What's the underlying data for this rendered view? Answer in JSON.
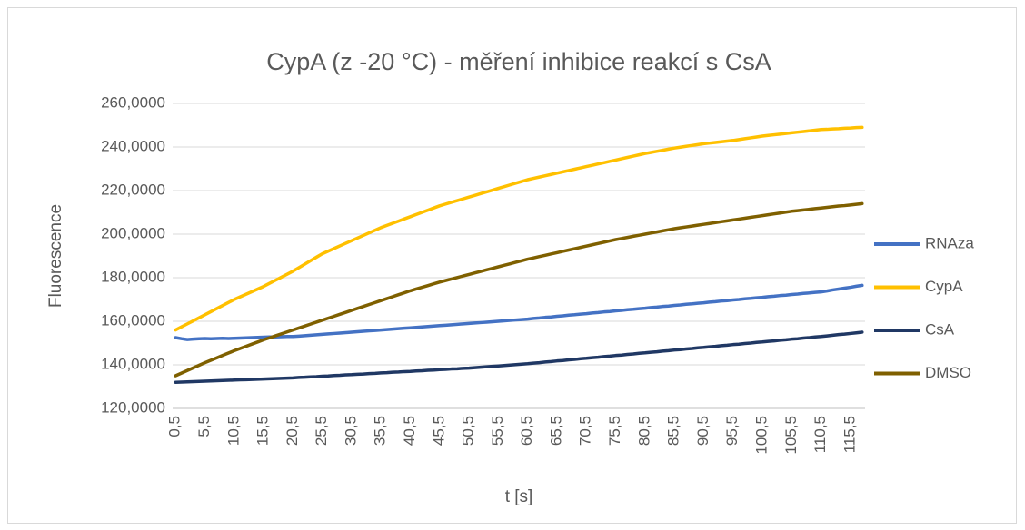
{
  "chart_data": {
    "type": "line",
    "title": "CypA (z -20 °C) - měření inhibice reakcí s CsA",
    "x_label": "t [s]",
    "y_label": "Fluorescence",
    "categories": [
      "0,5",
      null,
      null,
      null,
      null,
      "5,5",
      null,
      null,
      null,
      null,
      "10,5",
      null,
      null,
      null,
      null,
      "15,5",
      null,
      null,
      null,
      null,
      "20,5",
      null,
      null,
      null,
      null,
      "25,5",
      null,
      null,
      null,
      null,
      "30,5",
      null,
      null,
      null,
      null,
      "35,5",
      null,
      null,
      null,
      null,
      "40,5",
      null,
      null,
      null,
      null,
      "45,5",
      null,
      null,
      null,
      null,
      "50,5",
      null,
      null,
      null,
      null,
      "55,5",
      null,
      null,
      null,
      null,
      "60,5",
      null,
      null,
      null,
      null,
      "65,5",
      null,
      null,
      null,
      null,
      "70,5",
      null,
      null,
      null,
      null,
      "75,5",
      null,
      null,
      null,
      null,
      "80,5",
      null,
      null,
      null,
      null,
      "85,5",
      null,
      null,
      null,
      null,
      "90,5",
      null,
      null,
      null,
      null,
      "95,5",
      null,
      null,
      null,
      null,
      "100,5",
      null,
      null,
      null,
      null,
      "105,5",
      null,
      null,
      null,
      null,
      "110,5",
      null,
      null,
      null,
      null,
      "115,5",
      null,
      null
    ],
    "series": [
      {
        "name": "RNAza",
        "color": "#4472c4",
        "values": [
          152.5,
          152.0,
          151.6,
          151.8,
          152.0,
          152.1,
          152.0,
          152.1,
          152.2,
          152.1,
          152.2,
          152.3,
          152.4,
          152.5,
          152.6,
          152.7,
          152.8,
          152.8,
          152.9,
          153.0,
          153.0,
          153.2,
          153.4,
          153.6,
          153.8,
          154.0,
          154.2,
          154.4,
          154.6,
          154.8,
          155.0,
          155.2,
          155.4,
          155.6,
          155.8,
          156.0,
          156.2,
          156.4,
          156.6,
          156.8,
          157.0,
          157.2,
          157.4,
          157.6,
          157.8,
          158.0,
          158.2,
          158.4,
          158.6,
          158.8,
          159.0,
          159.2,
          159.4,
          159.6,
          159.8,
          160.0,
          160.2,
          160.4,
          160.6,
          160.8,
          161.0,
          161.3,
          161.5,
          161.8,
          162.0,
          162.3,
          162.5,
          162.8,
          163.0,
          163.3,
          163.5,
          163.8,
          164.0,
          164.3,
          164.5,
          164.8,
          165.0,
          165.3,
          165.5,
          165.8,
          166.0,
          166.3,
          166.5,
          166.8,
          167.0,
          167.3,
          167.5,
          167.8,
          168.0,
          168.3,
          168.5,
          168.8,
          169.0,
          169.3,
          169.5,
          169.8,
          170.0,
          170.3,
          170.5,
          170.8,
          171.0,
          171.3,
          171.5,
          171.8,
          172.0,
          172.3,
          172.5,
          172.8,
          173.0,
          173.3,
          173.5,
          173.9,
          174.4,
          174.8,
          175.2,
          175.6,
          176.1,
          176.5
        ]
      },
      {
        "name": "CypA",
        "color": "#ffc000",
        "values": [
          156.0,
          157.4,
          158.8,
          160.2,
          161.6,
          163.0,
          164.4,
          165.8,
          167.2,
          168.6,
          170.0,
          171.2,
          172.4,
          173.6,
          174.8,
          176.0,
          177.4,
          178.8,
          180.2,
          181.6,
          183.0,
          184.6,
          186.2,
          187.8,
          189.4,
          191.0,
          192.2,
          193.4,
          194.6,
          195.8,
          197.0,
          198.2,
          199.4,
          200.6,
          201.8,
          203.0,
          204.0,
          205.0,
          206.0,
          207.0,
          208.0,
          209.0,
          210.0,
          211.0,
          212.0,
          213.0,
          213.8,
          214.6,
          215.4,
          216.2,
          217.0,
          217.8,
          218.6,
          219.4,
          220.2,
          221.0,
          221.8,
          222.6,
          223.4,
          224.2,
          225.0,
          225.6,
          226.2,
          226.8,
          227.4,
          228.0,
          228.6,
          229.2,
          229.8,
          230.4,
          231.0,
          231.6,
          232.2,
          232.8,
          233.4,
          234.0,
          234.6,
          235.2,
          235.8,
          236.4,
          237.0,
          237.5,
          238.0,
          238.5,
          239.0,
          239.5,
          239.9,
          240.3,
          240.7,
          241.1,
          241.5,
          241.8,
          242.1,
          242.4,
          242.7,
          243.0,
          243.4,
          243.8,
          244.2,
          244.6,
          245.0,
          245.3,
          245.6,
          245.9,
          246.2,
          246.5,
          246.8,
          247.1,
          247.4,
          247.7,
          248.0,
          248.1,
          248.3,
          248.4,
          248.6,
          248.7,
          248.9,
          249.0
        ]
      },
      {
        "name": "CsA",
        "color": "#203864",
        "values": [
          132.0,
          132.1,
          132.2,
          132.3,
          132.4,
          132.5,
          132.6,
          132.7,
          132.8,
          132.9,
          133.0,
          133.1,
          133.2,
          133.3,
          133.4,
          133.5,
          133.6,
          133.7,
          133.8,
          133.9,
          134.0,
          134.2,
          134.3,
          134.5,
          134.6,
          134.8,
          134.9,
          135.1,
          135.2,
          135.4,
          135.5,
          135.7,
          135.8,
          136.0,
          136.1,
          136.3,
          136.4,
          136.6,
          136.7,
          136.9,
          137.0,
          137.2,
          137.3,
          137.5,
          137.6,
          137.8,
          137.9,
          138.1,
          138.2,
          138.4,
          138.5,
          138.7,
          138.9,
          139.1,
          139.3,
          139.5,
          139.7,
          139.9,
          140.1,
          140.3,
          140.5,
          140.8,
          141.0,
          141.3,
          141.5,
          141.8,
          142.0,
          142.3,
          142.5,
          142.8,
          143.0,
          143.3,
          143.5,
          143.8,
          144.0,
          144.3,
          144.5,
          144.8,
          145.0,
          145.3,
          145.5,
          145.8,
          146.0,
          146.3,
          146.5,
          146.8,
          147.0,
          147.3,
          147.5,
          147.8,
          148.0,
          148.3,
          148.5,
          148.8,
          149.0,
          149.3,
          149.5,
          149.8,
          150.0,
          150.3,
          150.5,
          150.8,
          151.0,
          151.3,
          151.5,
          151.8,
          152.0,
          152.3,
          152.5,
          152.8,
          153.0,
          153.3,
          153.6,
          153.9,
          154.1,
          154.4,
          154.7,
          155.0
        ]
      },
      {
        "name": "DMSO",
        "color": "#7f6000",
        "values": [
          135.0,
          136.2,
          137.4,
          138.6,
          139.8,
          141.0,
          142.1,
          143.2,
          144.3,
          145.4,
          146.5,
          147.5,
          148.5,
          149.5,
          150.5,
          151.5,
          152.4,
          153.3,
          154.2,
          155.1,
          156.0,
          156.9,
          157.8,
          158.7,
          159.6,
          160.5,
          161.4,
          162.3,
          163.2,
          164.1,
          165.0,
          165.9,
          166.8,
          167.7,
          168.6,
          169.5,
          170.4,
          171.3,
          172.2,
          173.1,
          174.0,
          174.8,
          175.6,
          176.4,
          177.2,
          178.0,
          178.7,
          179.4,
          180.1,
          180.8,
          181.5,
          182.2,
          182.9,
          183.6,
          184.3,
          185.0,
          185.7,
          186.4,
          187.1,
          187.8,
          188.5,
          189.1,
          189.7,
          190.3,
          190.9,
          191.5,
          192.1,
          192.7,
          193.3,
          193.9,
          194.5,
          195.1,
          195.7,
          196.3,
          196.9,
          197.5,
          198.0,
          198.5,
          199.0,
          199.5,
          200.0,
          200.5,
          201.0,
          201.5,
          202.0,
          202.5,
          202.9,
          203.3,
          203.7,
          204.1,
          204.5,
          204.9,
          205.3,
          205.7,
          206.1,
          206.5,
          206.9,
          207.3,
          207.7,
          208.1,
          208.5,
          208.9,
          209.3,
          209.7,
          210.1,
          210.5,
          210.8,
          211.1,
          211.4,
          211.7,
          212.0,
          212.3,
          212.6,
          212.9,
          213.1,
          213.4,
          213.7,
          214.0
        ]
      }
    ],
    "ylim": [
      120,
      260
    ],
    "yticks": [
      {
        "value": 120,
        "label": "120,0000"
      },
      {
        "value": 140,
        "label": "140,0000"
      },
      {
        "value": 160,
        "label": "160,0000"
      },
      {
        "value": 180,
        "label": "180,0000"
      },
      {
        "value": 200,
        "label": "200,0000"
      },
      {
        "value": 220,
        "label": "220,0000"
      },
      {
        "value": 240,
        "label": "240,0000"
      },
      {
        "value": 260,
        "label": "260,0000"
      }
    ],
    "grid": true,
    "legend": "right"
  }
}
